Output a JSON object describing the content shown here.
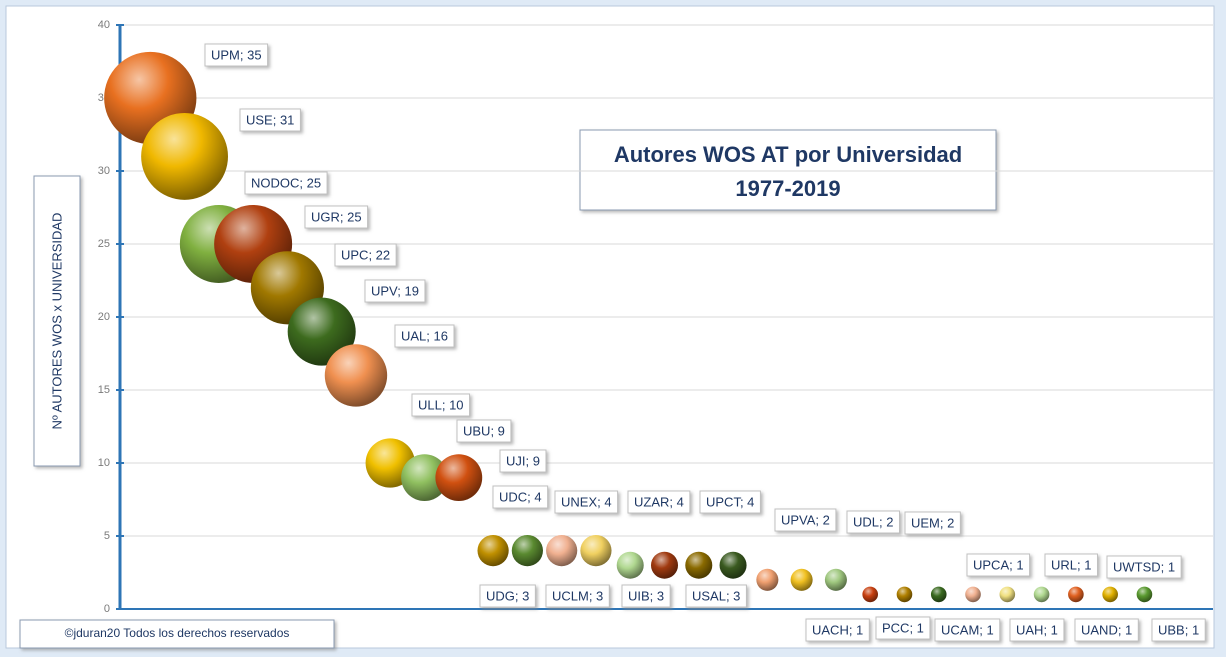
{
  "chart_data": {
    "type": "bubble",
    "title": "Autores WOS AT por Universidad",
    "subtitle": "1977-2019",
    "y_label": "Nº AUTORES WOS x UNIVERSIDAD",
    "footer": "©jduran20 Todos los derechos reservados",
    "x": [
      1,
      2,
      3,
      4,
      5,
      6,
      7,
      8,
      9,
      10,
      11,
      12,
      13,
      14,
      15,
      16,
      17,
      18,
      19,
      20,
      21,
      22,
      23,
      24,
      25,
      26,
      27,
      28,
      29,
      30
    ],
    "values": [
      35,
      31,
      25,
      25,
      22,
      19,
      16,
      10,
      9,
      9,
      4,
      4,
      4,
      4,
      3,
      3,
      3,
      3,
      2,
      2,
      2,
      1,
      1,
      1,
      1,
      1,
      1,
      1,
      1,
      1
    ],
    "value_labels": [
      "UPM; 35",
      "USE; 31",
      "NODOC; 25",
      "UGR; 25",
      "UPC; 22",
      "UPV; 19",
      "UAL; 16",
      "ULL; 10",
      "UBU; 9",
      "UJI; 9",
      "UDC; 4",
      "UNEX; 4",
      "UZAR; 4",
      "UPCT; 4",
      "UDG; 3",
      "UCLM; 3",
      "UIB; 3",
      "USAL; 3",
      "UPVA; 2",
      "UDL; 2",
      "UEM; 2",
      "UACH; 1",
      "PCC; 1",
      "UCAM; 1",
      "UAH; 1",
      "UPCA; 1",
      "UAND; 1",
      "URL; 1",
      "UBB; 1",
      "UWTSD; 1"
    ],
    "colors": [
      "#e87020",
      "#f0b800",
      "#80b040",
      "#b04010",
      "#a07800",
      "#3d6b1e",
      "#f09050",
      "#f0c000",
      "#90c060",
      "#d05010",
      "#c09000",
      "#5a8a30",
      "#f0b090",
      "#f0d060",
      "#b0d890",
      "#a03a10",
      "#8a6a00",
      "#3a5a20",
      "#f0a070",
      "#f0c020",
      "#a0c880",
      "#c84010",
      "#b08000",
      "#3a6a20",
      "#f0b090",
      "#f0e080",
      "#b0d890",
      "#e06020",
      "#e0b000",
      "#5a9a30"
    ],
    "xlim": [
      0,
      32
    ],
    "ylim": [
      0,
      40
    ],
    "yticks": [
      0,
      5,
      10,
      15,
      20,
      25,
      30,
      35,
      40
    ],
    "grid": true
  }
}
